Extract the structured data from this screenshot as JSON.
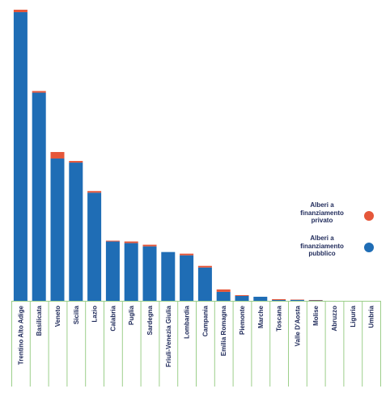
{
  "chart_data": {
    "type": "bar",
    "stacked": true,
    "categories": [
      "Trentino Alto Adige",
      "Basilicata",
      "Veneto",
      "Sicilia",
      "Lazio",
      "Calabria",
      "Puglia",
      "Sardegna",
      "Friuli-Venezia Giulia",
      "Lombardia",
      "Campania",
      "Emilia Romagna",
      "Piemonte",
      "Marche",
      "Toscana",
      "Valle D'Aosta",
      "Molise",
      "Abruzzo",
      "Liguria",
      "Umbria"
    ],
    "series": [
      {
        "name": "Alberi a finanziamento pubblico",
        "color": "#1f6db5",
        "values": [
          355,
          256,
          175,
          170,
          133,
          73,
          71,
          67,
          60,
          56,
          41,
          11,
          6,
          5,
          1,
          1,
          0.5,
          0,
          0,
          0
        ]
      },
      {
        "name": "Alberi a finanziamento privato",
        "color": "#e5573a",
        "values": [
          3,
          2,
          8,
          2,
          2,
          1,
          2,
          2,
          0,
          2,
          2,
          3,
          1,
          0,
          1,
          0.5,
          0.5,
          0,
          0,
          0
        ]
      }
    ],
    "ylim": [
      0,
      360
    ],
    "grid": false,
    "legend_position": "right"
  },
  "legend": {
    "items": [
      {
        "label": "Alberi a\nfinanziamento\nprivato",
        "color": "#e5573a"
      },
      {
        "label": "Alberi a\nfinanziamento\npubblico",
        "color": "#1f6db5"
      }
    ]
  }
}
